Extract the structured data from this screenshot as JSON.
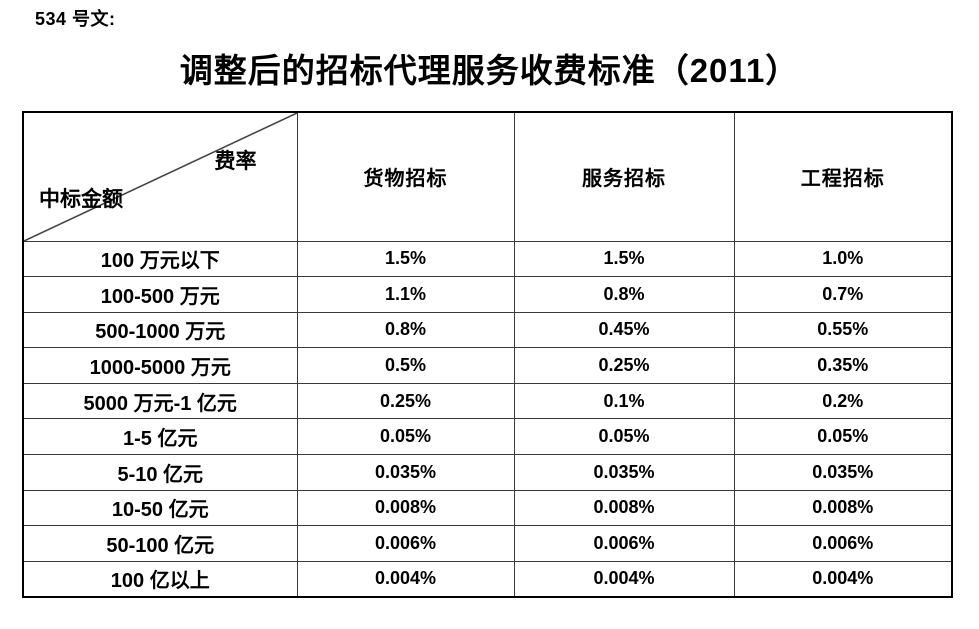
{
  "doc_number": "534 号文:",
  "title": "调整后的招标代理服务收费标准（2011）",
  "table": {
    "corner": {
      "top_right": "费率",
      "bottom_left": "中标金额"
    },
    "columns": [
      "货物招标",
      "服务招标",
      "工程招标"
    ],
    "rows": [
      {
        "label": "100 万元以下",
        "values": [
          "1.5%",
          "1.5%",
          "1.0%"
        ]
      },
      {
        "label": "100-500 万元",
        "values": [
          "1.1%",
          "0.8%",
          "0.7%"
        ]
      },
      {
        "label": "500-1000 万元",
        "values": [
          "0.8%",
          "0.45%",
          "0.55%"
        ]
      },
      {
        "label": "1000-5000 万元",
        "values": [
          "0.5%",
          "0.25%",
          "0.35%"
        ]
      },
      {
        "label": "5000 万元-1 亿元",
        "values": [
          "0.25%",
          "0.1%",
          "0.2%"
        ]
      },
      {
        "label": "1-5 亿元",
        "values": [
          "0.05%",
          "0.05%",
          "0.05%"
        ]
      },
      {
        "label": "5-10 亿元",
        "values": [
          "0.035%",
          "0.035%",
          "0.035%"
        ]
      },
      {
        "label": "10-50 亿元",
        "values": [
          "0.008%",
          "0.008%",
          "0.008%"
        ]
      },
      {
        "label": "50-100 亿元",
        "values": [
          "0.006%",
          "0.006%",
          "0.006%"
        ]
      },
      {
        "label": "100 亿以上",
        "values": [
          "0.004%",
          "0.004%",
          "0.004%"
        ]
      }
    ],
    "colors": {
      "border_outer": "#000000",
      "border_inner": "#3a3a3a",
      "text": "#000000",
      "background": "#ffffff"
    }
  }
}
